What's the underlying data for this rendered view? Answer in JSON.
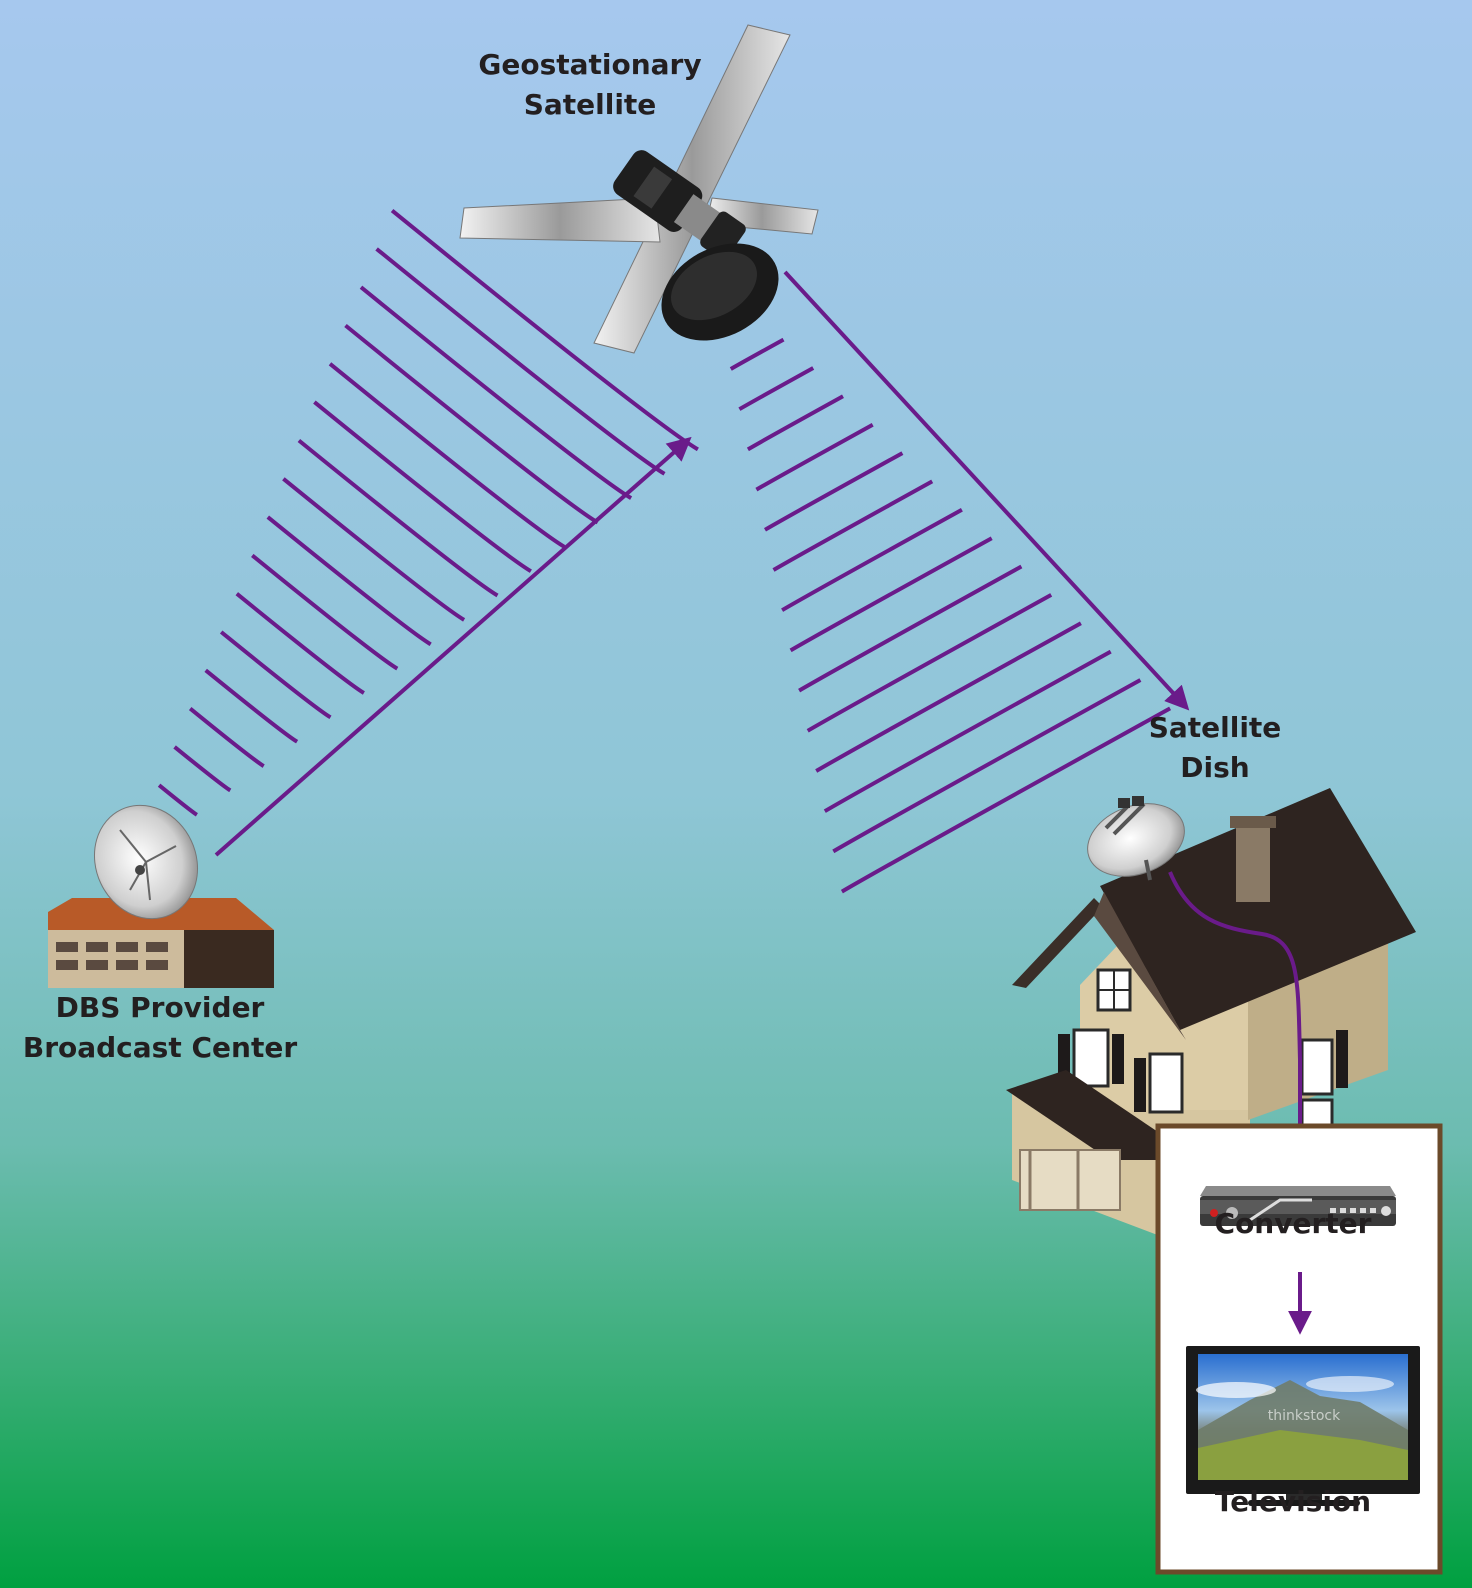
{
  "labels": {
    "satellite": [
      "Geostationary",
      "Satellite"
    ],
    "dish": [
      "Satellite",
      "Dish"
    ],
    "provider": [
      "DBS Provider",
      "Broadcast Center"
    ],
    "converter": "Converter",
    "television": "Television"
  },
  "tv_watermark": "thinkstock",
  "colors": {
    "signal": "#6a1b8a",
    "sky_top": "#a6c8ee",
    "ground_bottom": "#00a040",
    "roof": "#2e2420",
    "house_wall": "#d8c9a0",
    "panel_border": "#6b4a2a"
  }
}
